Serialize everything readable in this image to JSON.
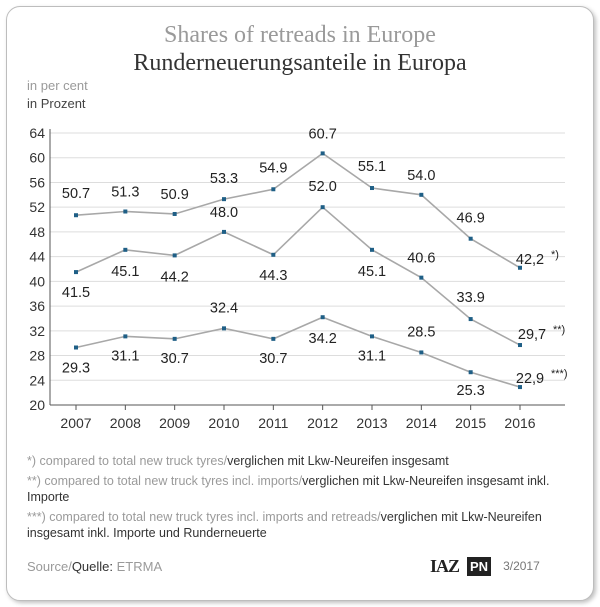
{
  "title_en": "Shares of retreads in Europe",
  "title_de": "Runderneuerungsanteile in Europa",
  "unit_en": "in per cent",
  "unit_de": "in Prozent",
  "notes": [
    {
      "en": "*) compared to total new truck tyres/",
      "de": "verglichen mit Lkw-Neureifen insgesamt"
    },
    {
      "en": "**) compared to total new truck tyres incl. imports/",
      "de": "verglichen mit Lkw-Neureifen insgesamt inkl. Importe"
    },
    {
      "en": "***) compared to total new truck tyres incl. imports and retreads/",
      "de": "verglichen mit Lkw-Neureifen insgesamt inkl. Importe und Runderneuerte"
    }
  ],
  "source_en": "Source/",
  "source_de": "Quelle:",
  "source_name": "ETRMA",
  "logo_iaz": "IAZ",
  "logo_pn": "PN",
  "date": "3/2017",
  "colors": {
    "line": "#a8a8a8",
    "marker": "#1f5f86",
    "grid": "#dddddd",
    "axis": "#555555"
  },
  "chart_data": {
    "type": "line",
    "x": [
      2007,
      2008,
      2009,
      2010,
      2011,
      2012,
      2013,
      2014,
      2015,
      2016
    ],
    "ylim": [
      20,
      64
    ],
    "yticks": [
      20,
      24,
      28,
      32,
      36,
      40,
      44,
      48,
      52,
      56,
      60,
      64
    ],
    "grid": true,
    "series": [
      {
        "values": [
          50.7,
          51.3,
          50.9,
          53.3,
          54.9,
          60.7,
          55.1,
          54.0,
          46.9,
          42.2
        ],
        "labels": [
          "50.7",
          "51.3",
          "50.9",
          "53.3",
          "54.9",
          "60.7",
          "55.1",
          "54.0",
          "46.9",
          "42,2"
        ],
        "end_marker": "*)"
      },
      {
        "values": [
          41.5,
          45.1,
          44.2,
          48.0,
          44.3,
          52.0,
          45.1,
          40.6,
          33.9,
          29.7
        ],
        "labels": [
          "41.5",
          "45.1",
          "44.2",
          "48.0",
          "44.3",
          "52.0",
          "45.1",
          "40.6",
          "33.9",
          "29,7"
        ],
        "end_marker": "**)"
      },
      {
        "values": [
          29.3,
          31.1,
          30.7,
          32.4,
          30.7,
          34.2,
          31.1,
          28.5,
          25.3,
          22.9
        ],
        "labels": [
          "29.3",
          "31.1",
          "30.7",
          "32.4",
          "30.7",
          "34.2",
          "31.1",
          "28.5",
          "25.3",
          "22,9"
        ],
        "end_marker": "***)"
      }
    ]
  }
}
